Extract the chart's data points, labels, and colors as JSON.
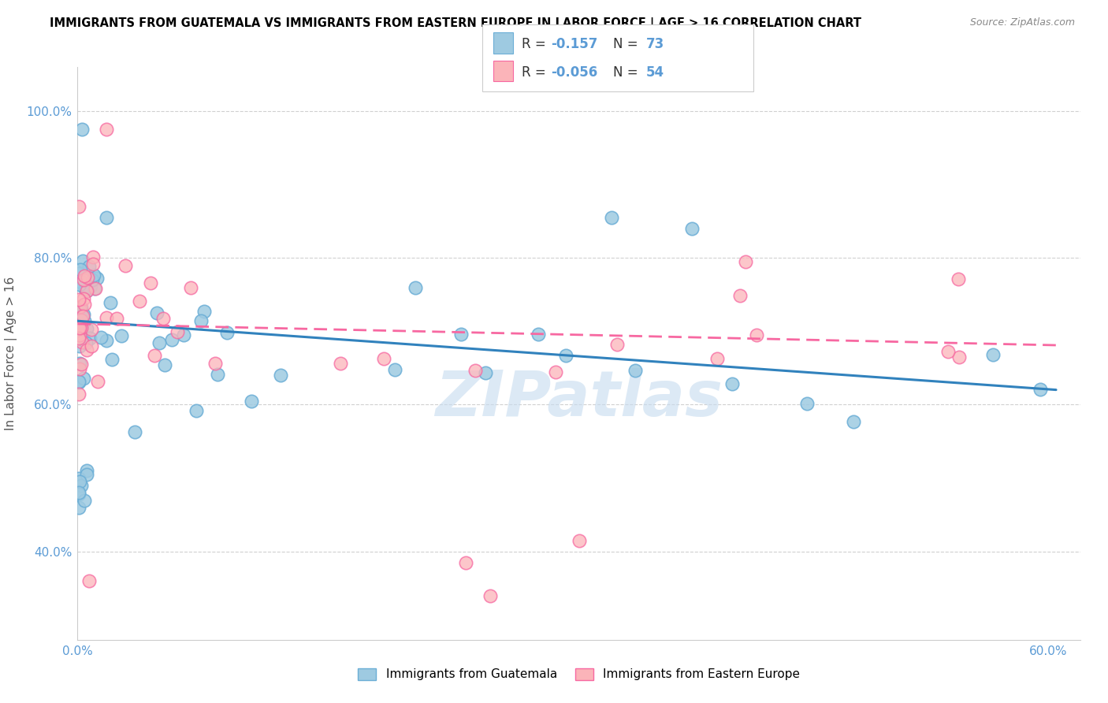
{
  "title": "IMMIGRANTS FROM GUATEMALA VS IMMIGRANTS FROM EASTERN EUROPE IN LABOR FORCE | AGE > 16 CORRELATION CHART",
  "source": "Source: ZipAtlas.com",
  "ylabel": "In Labor Force | Age > 16",
  "xlim": [
    0.0,
    0.62
  ],
  "ylim": [
    0.28,
    1.06
  ],
  "xticks": [
    0.0,
    0.1,
    0.2,
    0.3,
    0.4,
    0.5,
    0.6
  ],
  "xticklabels": [
    "0.0%",
    "",
    "",
    "",
    "",
    "",
    "60.0%"
  ],
  "yticks": [
    0.4,
    0.6,
    0.8,
    1.0
  ],
  "yticklabels": [
    "40.0%",
    "60.0%",
    "80.0%",
    "100.0%"
  ],
  "R1": -0.157,
  "N1": 73,
  "R2": -0.056,
  "N2": 54,
  "color1": "#9ecae1",
  "color2": "#fbb4b9",
  "edge1": "#6baed6",
  "edge2": "#f768a1",
  "line1_color": "#3182bd",
  "line2_color": "#f768a1",
  "legend1": "Immigrants from Guatemala",
  "legend2": "Immigrants from Eastern Europe",
  "watermark": "ZIPatlas",
  "watermark_color": "#c6dbef",
  "tick_color": "#5b9bd5",
  "line1_y0": 0.714,
  "line1_slope": -0.155,
  "line2_y0": 0.71,
  "line2_slope": -0.048
}
